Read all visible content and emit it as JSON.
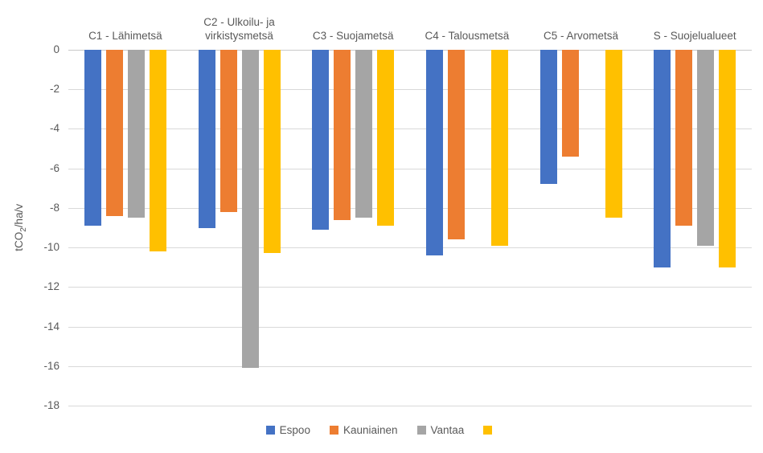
{
  "chart_data": {
    "type": "bar",
    "title": "",
    "ylabel": "tCO2/ha/v",
    "ylabel_parts": {
      "pre": "tCO",
      "sub": "2",
      "post": "/ha/v"
    },
    "categories": [
      "C1 - Lähimetsä",
      "C2 - Ulkoilu- ja virkistysmetsä",
      "C3 - Suojametsä",
      "C4 - Talousmetsä",
      "C5 - Arvometsä",
      "S - Suojelualueet"
    ],
    "series": [
      {
        "name": "Espoo",
        "color": "#4472C4",
        "values": [
          -8.9,
          -9.0,
          -9.1,
          -10.4,
          -6.8,
          -11.0
        ]
      },
      {
        "name": "Kauniainen",
        "color": "#ED7D31",
        "values": [
          -8.4,
          -8.2,
          -8.6,
          -9.6,
          -5.4,
          -8.9
        ]
      },
      {
        "name": "Vantaa",
        "color": "#A5A5A5",
        "values": [
          -8.5,
          -16.1,
          -8.5,
          null,
          null,
          -9.9
        ]
      },
      {
        "name": "",
        "color": "#FFC000",
        "values": [
          -10.2,
          -10.3,
          -8.9,
          -9.9,
          -8.5,
          -11.0
        ]
      }
    ],
    "ylim": [
      -18,
      0
    ],
    "yticks": [
      0,
      -2,
      -4,
      -6,
      -8,
      -10,
      -12,
      -14,
      -16,
      -18
    ],
    "grid": true,
    "legend_position": "bottom",
    "colors": {
      "grid": "#D9D9D9",
      "text": "#595959",
      "background": "#FFFFFF"
    }
  }
}
